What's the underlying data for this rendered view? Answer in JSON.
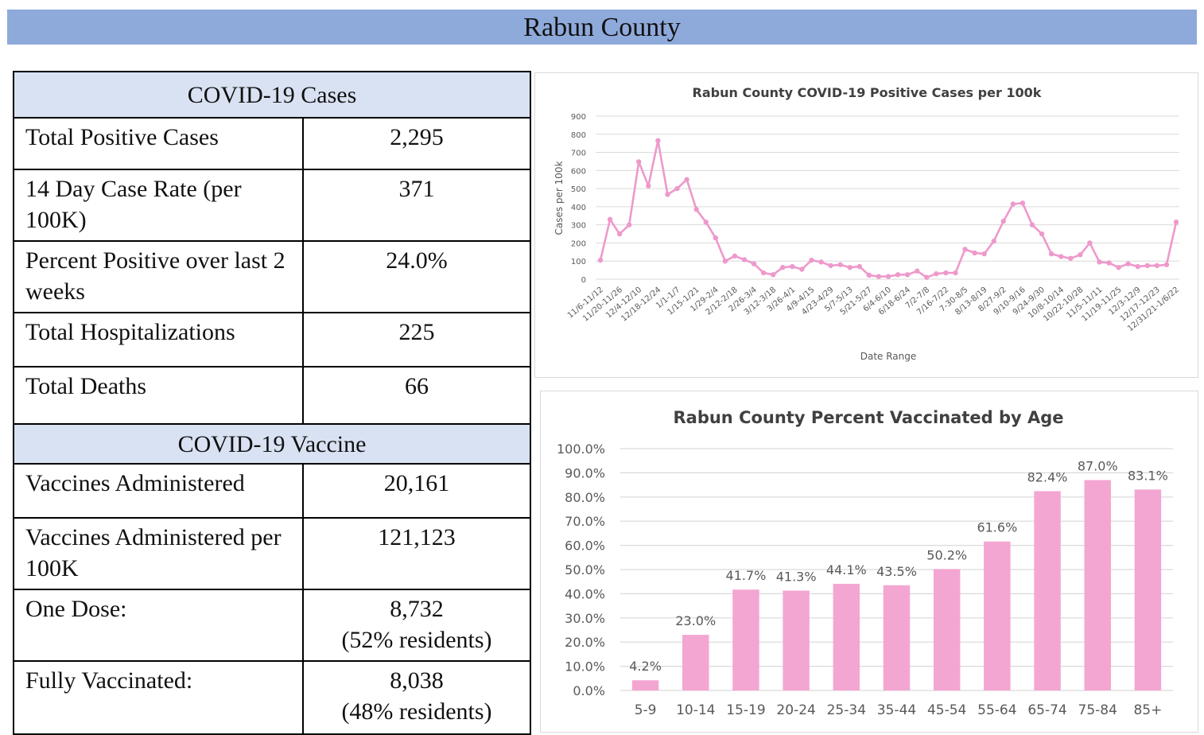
{
  "header": {
    "title": "Rabun County"
  },
  "cases_section": {
    "title": "COVID-19 Cases",
    "rows": [
      {
        "label": "Total Positive Cases",
        "value": "2,295"
      },
      {
        "label": "14 Day Case Rate (per 100K)",
        "value": "371"
      },
      {
        "label": "Percent Positive over last 2 weeks",
        "value": "24.0%"
      },
      {
        "label": "Total Hospitalizations",
        "value": "225"
      },
      {
        "label": "Total Deaths",
        "value": "66"
      }
    ]
  },
  "vaccine_section": {
    "title": "COVID-19 Vaccine",
    "rows": [
      {
        "label": "Vaccines Administered",
        "value": "20,161",
        "sub": ""
      },
      {
        "label": "Vaccines Administered per 100K",
        "value": "121,123",
        "sub": ""
      },
      {
        "label": "One Dose:",
        "value": "8,732",
        "sub": "(52% residents)"
      },
      {
        "label": "Fully Vaccinated:",
        "value": "8,038",
        "sub": "(48% residents)"
      }
    ]
  },
  "colors": {
    "banner": "#8eaadb",
    "section_header": "#d9e2f3",
    "series": "#f4a6d2",
    "line": "#ee99cc"
  },
  "chart_data": [
    {
      "type": "line",
      "title": "Rabun County COVID-19 Positive Cases per 100k",
      "xlabel": "Date Range",
      "ylabel": "Cases per 100k",
      "ylim": [
        0,
        900
      ],
      "yticks": [
        0,
        100,
        200,
        300,
        400,
        500,
        600,
        700,
        800,
        900
      ],
      "grid": true,
      "x_tick_labels": [
        "11/6-11/12",
        "11/20-11/26",
        "12/4-12/10",
        "12/18-12/24",
        "1/1-1/7",
        "1/15-1/21",
        "1/29-2/4",
        "2/12-2/18",
        "2/26-3/4",
        "3/12-3/18",
        "3/26-4/1",
        "4/9-4/15",
        "4/23-4/29",
        "5/7-5/13",
        "5/21-5/27",
        "6/4-6/10",
        "6/18-6/24",
        "7/2-7/8",
        "7/16-7/22",
        "7-30-8/5",
        "8/13-8/19",
        "8/27-9/2",
        "9/10-9/16",
        "9/24-9/30",
        "10/8-10/14",
        "10/22-10/28",
        "11/5-11/11",
        "11/19-11/25",
        "12/3-12/9",
        "12/17-12/23",
        "12/31/21-1/6/22"
      ],
      "series": [
        {
          "name": "Cases per 100k",
          "values": [
            105,
            330,
            250,
            300,
            648,
            515,
            765,
            468,
            500,
            550,
            385,
            315,
            228,
            100,
            128,
            108,
            85,
            35,
            25,
            65,
            70,
            55,
            105,
            95,
            75,
            80,
            65,
            70,
            22,
            15,
            15,
            25,
            25,
            45,
            10,
            30,
            35,
            35,
            165,
            145,
            140,
            210,
            320,
            415,
            420,
            300,
            250,
            140,
            125,
            115,
            135,
            200,
            95,
            90,
            65,
            85,
            70,
            75,
            75,
            80,
            315
          ]
        }
      ]
    },
    {
      "type": "bar",
      "title": "Rabun County Percent Vaccinated by Age",
      "xlabel": "",
      "ylabel": "",
      "ylim": [
        0,
        100
      ],
      "yticks": [
        "0.0%",
        "10.0%",
        "20.0%",
        "30.0%",
        "40.0%",
        "50.0%",
        "60.0%",
        "70.0%",
        "80.0%",
        "90.0%",
        "100.0%"
      ],
      "grid": true,
      "categories": [
        "5-9",
        "10-14",
        "15-19",
        "20-24",
        "25-34",
        "35-44",
        "45-54",
        "55-64",
        "65-74",
        "75-84",
        "85+"
      ],
      "values": [
        4.2,
        23.0,
        41.7,
        41.3,
        44.1,
        43.5,
        50.2,
        61.6,
        82.4,
        87.0,
        83.1
      ],
      "data_labels": [
        "4.2%",
        "23.0%",
        "41.7%",
        "41.3%",
        "44.1%",
        "43.5%",
        "50.2%",
        "61.6%",
        "82.4%",
        "87.0%",
        "83.1%"
      ]
    }
  ]
}
